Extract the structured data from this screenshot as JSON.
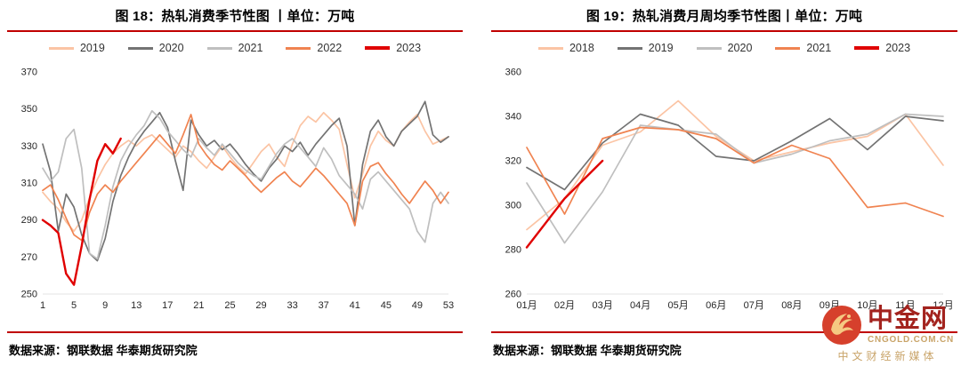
{
  "chart_data": [
    {
      "type": "line",
      "title": "图 18：热轧消费季节性图 丨单位：万吨",
      "source": "数据来源：钢联数据 华泰期货研究院",
      "ylim": [
        250,
        370
      ],
      "yticks": [
        250,
        270,
        290,
        310,
        330,
        350,
        370
      ],
      "x_count": 53,
      "grid": false,
      "legend_position": "top",
      "xticks": [
        {
          "i": 0,
          "label": "1"
        },
        {
          "i": 4,
          "label": "5"
        },
        {
          "i": 8,
          "label": "9"
        },
        {
          "i": 12,
          "label": "13"
        },
        {
          "i": 16,
          "label": "17"
        },
        {
          "i": 20,
          "label": "21"
        },
        {
          "i": 24,
          "label": "25"
        },
        {
          "i": 28,
          "label": "29"
        },
        {
          "i": 32,
          "label": "33"
        },
        {
          "i": 36,
          "label": "37"
        },
        {
          "i": 40,
          "label": "41"
        },
        {
          "i": 44,
          "label": "45"
        },
        {
          "i": 48,
          "label": "49"
        },
        {
          "i": 52,
          "label": "53"
        }
      ],
      "series": [
        {
          "name": "2019",
          "color": "#FBC4A4",
          "width": 1.7,
          "values": [
            305,
            300,
            296,
            289,
            284,
            290,
            302,
            312,
            320,
            326,
            330,
            333,
            330,
            334,
            336,
            332,
            328,
            324,
            330,
            327,
            322,
            318,
            324,
            330,
            324,
            319,
            315,
            321,
            327,
            331,
            324,
            319,
            331,
            341,
            346,
            343,
            348,
            344,
            339,
            320,
            302,
            315,
            330,
            338,
            333,
            330,
            338,
            343,
            347,
            338,
            331,
            333,
            335
          ]
        },
        {
          "name": "2020",
          "color": "#737373",
          "width": 1.7,
          "values": [
            331,
            316,
            284,
            304,
            297,
            282,
            272,
            268,
            280,
            300,
            314,
            324,
            332,
            338,
            343,
            348,
            340,
            322,
            306,
            344,
            336,
            330,
            333,
            328,
            331,
            326,
            320,
            315,
            311,
            318,
            323,
            330,
            327,
            332,
            325,
            331,
            336,
            341,
            345,
            330,
            287,
            320,
            338,
            344,
            335,
            330,
            338,
            342,
            346,
            354,
            336,
            332,
            335
          ]
        },
        {
          "name": "2021",
          "color": "#BFBFBF",
          "width": 1.7,
          "values": [
            318,
            311,
            316,
            334,
            339,
            318,
            272,
            269,
            287,
            308,
            322,
            330,
            336,
            341,
            349,
            345,
            338,
            333,
            328,
            324,
            334,
            329,
            325,
            331,
            326,
            321,
            317,
            314,
            312,
            319,
            326,
            331,
            334,
            329,
            324,
            319,
            329,
            323,
            314,
            309,
            304,
            296,
            312,
            316,
            311,
            306,
            301,
            296,
            284,
            278,
            299,
            305,
            299
          ]
        },
        {
          "name": "2022",
          "color": "#F08350",
          "width": 1.7,
          "values": [
            306,
            309,
            301,
            291,
            282,
            279,
            294,
            304,
            309,
            305,
            311,
            316,
            321,
            326,
            331,
            336,
            331,
            326,
            336,
            347,
            331,
            325,
            320,
            317,
            322,
            318,
            314,
            309,
            305,
            309,
            313,
            316,
            311,
            308,
            313,
            318,
            314,
            309,
            304,
            299,
            287,
            311,
            319,
            321,
            315,
            310,
            304,
            299,
            305,
            311,
            306,
            299,
            305
          ]
        },
        {
          "name": "2023",
          "color": "#E00000",
          "width": 2.4,
          "values": [
            290,
            287,
            283,
            261,
            255,
            276,
            301,
            322,
            331,
            326,
            334
          ]
        }
      ]
    },
    {
      "type": "line",
      "title": "图 19：热轧消费月周均季节性图丨单位：万吨",
      "source": "数据来源：钢联数据 华泰期货研究院",
      "ylim": [
        260,
        360
      ],
      "yticks": [
        260,
        280,
        300,
        320,
        340,
        360
      ],
      "x_count": 12,
      "grid": false,
      "legend_position": "top",
      "xticks": [
        {
          "i": 0,
          "label": "01月"
        },
        {
          "i": 1,
          "label": "02月"
        },
        {
          "i": 2,
          "label": "03月"
        },
        {
          "i": 3,
          "label": "04月"
        },
        {
          "i": 4,
          "label": "05月"
        },
        {
          "i": 5,
          "label": "06月"
        },
        {
          "i": 6,
          "label": "07月"
        },
        {
          "i": 7,
          "label": "08月"
        },
        {
          "i": 8,
          "label": "09月"
        },
        {
          "i": 9,
          "label": "10月"
        },
        {
          "i": 10,
          "label": "11月"
        },
        {
          "i": 11,
          "label": "12月"
        }
      ],
      "series": [
        {
          "name": "2018",
          "color": "#FBC4A4",
          "width": 1.7,
          "values": [
            289,
            303,
            327,
            333,
            347,
            331,
            320,
            324,
            328,
            331,
            341,
            318
          ]
        },
        {
          "name": "2019",
          "color": "#737373",
          "width": 1.7,
          "values": [
            317,
            307,
            328,
            341,
            336,
            322,
            320,
            329,
            339,
            325,
            340,
            338
          ]
        },
        {
          "name": "2020",
          "color": "#BFBFBF",
          "width": 1.7,
          "values": [
            310,
            283,
            306,
            336,
            334,
            332,
            319,
            323,
            329,
            332,
            341,
            340
          ]
        },
        {
          "name": "2021",
          "color": "#F08350",
          "width": 1.7,
          "values": [
            326,
            296,
            330,
            335,
            334,
            330,
            319,
            327,
            321,
            299,
            301,
            295
          ]
        },
        {
          "name": "2023",
          "color": "#E00000",
          "width": 2.4,
          "values": [
            281,
            303,
            320
          ]
        }
      ]
    }
  ],
  "watermark": {
    "brand": "中金网",
    "domain": "CNGOLD.COM.CN",
    "tagline": "中文财经新媒体"
  },
  "style": {
    "rule_color": "#C00000"
  }
}
